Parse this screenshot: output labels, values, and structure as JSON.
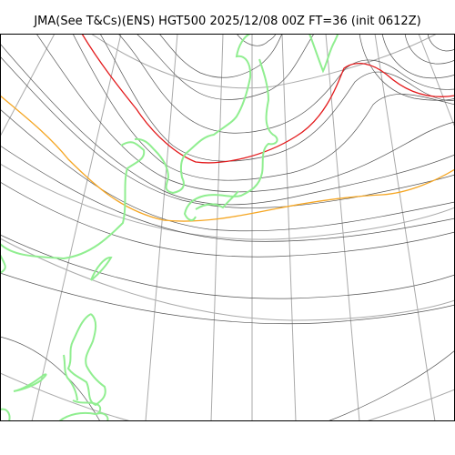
{
  "title": "JMA(See T&Cs)(ENS) HGT500 2025/12/08 00Z FT=36 (init 0612Z)",
  "colors": {
    "background": "#ffffff",
    "frame": "#000000",
    "graticule": "#aaaaaa",
    "contour": "#555555",
    "coastline": "#90ee90",
    "contour_highlight_red": "#e31a1c",
    "contour_highlight_orange": "#f5a623"
  },
  "layers": [
    "graticule",
    "height-contours",
    "coastline"
  ]
}
